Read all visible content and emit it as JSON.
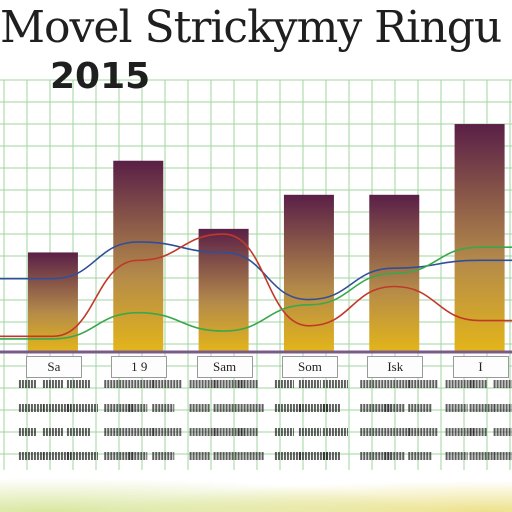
{
  "header": {
    "title": "Movel Strickymy Ringu",
    "subtitle": "2015"
  },
  "chart_data": {
    "type": "bar",
    "title": "Movel Strickymy Ringu",
    "subtitle": "2015",
    "xlabel": "",
    "ylabel": "",
    "categories": [
      "Sa",
      "1 9",
      "Sam",
      "Som",
      "Isk",
      "I"
    ],
    "ylim": [
      0,
      100
    ],
    "grid": true,
    "series": [
      {
        "values": [
          38,
          73,
          47,
          60,
          60,
          87
        ]
      }
    ],
    "lines": [
      {
        "color": "#2f4f9a",
        "values": [
          28,
          42,
          38,
          20,
          32,
          35
        ]
      },
      {
        "color": "#c0392b",
        "values": [
          6,
          35,
          45,
          10,
          25,
          12
        ]
      },
      {
        "color": "#3aa84a",
        "values": [
          5,
          15,
          8,
          18,
          30,
          40
        ]
      }
    ],
    "colors": {
      "bar_top": "#5a1f47",
      "bar_bottom": "#e3b51a",
      "grid": "#9fd59f",
      "axis": "#7a5a8a"
    }
  }
}
